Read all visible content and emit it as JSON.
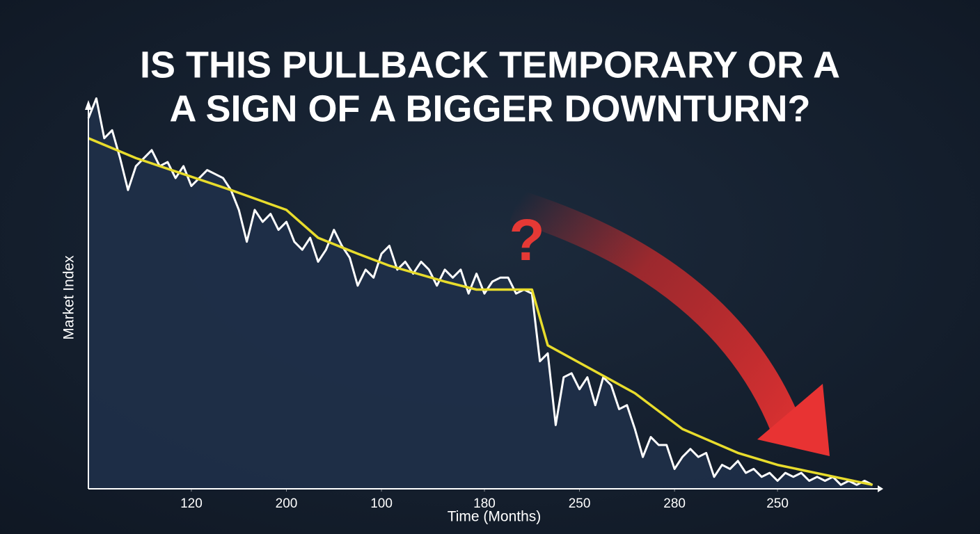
{
  "chart_data": {
    "type": "line",
    "title": [
      "IS THIS PULLBACK TEMPORARY OR A",
      "A SIGN OF A BIGGER DOWNTURN?"
    ],
    "x_label": "Time (Months)",
    "y_label": "Market Index",
    "annotation": "?",
    "xlim": [
      0,
      100
    ],
    "ylim": [
      0,
      100
    ],
    "xticks": [
      {
        "value": 13,
        "label": "120"
      },
      {
        "value": 25,
        "label": "200"
      },
      {
        "value": 37,
        "label": "100"
      },
      {
        "value": 50,
        "label": "180"
      },
      {
        "value": 62,
        "label": "250"
      },
      {
        "value": 74,
        "label": "280"
      },
      {
        "value": 87,
        "label": "250"
      }
    ],
    "fill_area": true,
    "series": [
      {
        "color": "#ffffff",
        "x": [
          0,
          1,
          2,
          3,
          4,
          5,
          6,
          7,
          8,
          9,
          10,
          11,
          12,
          13,
          14,
          15,
          16,
          17,
          18,
          19,
          20,
          21,
          22,
          23,
          24,
          25,
          26,
          27,
          28,
          29,
          30,
          31,
          32,
          33,
          34,
          35,
          36,
          37,
          38,
          39,
          40,
          41,
          42,
          43,
          44,
          45,
          46,
          47,
          48,
          49,
          50,
          51,
          52,
          53,
          54,
          55,
          56,
          57,
          58,
          59,
          60,
          61,
          62,
          63,
          64,
          65,
          66,
          67,
          68,
          69,
          70,
          71,
          72,
          73,
          74,
          75,
          76,
          77,
          78,
          79,
          80,
          81,
          82,
          83,
          84,
          85,
          86,
          87,
          88,
          89,
          90,
          91,
          92,
          93,
          94,
          95,
          96,
          97,
          98,
          99
        ],
        "values": [
          93,
          98,
          88,
          90,
          83,
          75,
          81,
          83,
          85,
          81,
          82,
          78,
          81,
          76,
          78,
          80,
          79,
          78,
          75,
          70,
          62,
          70,
          67,
          69,
          65,
          67,
          62,
          60,
          63,
          57,
          60,
          65,
          61,
          58,
          51,
          55,
          53,
          59,
          61,
          55,
          57,
          54,
          57,
          55,
          51,
          55,
          53,
          55,
          49,
          54,
          49,
          52,
          53,
          53,
          49,
          50,
          49,
          32,
          34,
          16,
          28,
          29,
          25,
          28,
          21,
          28,
          26,
          20,
          21,
          15,
          8,
          13,
          11,
          11,
          5,
          8,
          10,
          8,
          9,
          3,
          6,
          5,
          7,
          4,
          5,
          3,
          4,
          2,
          4,
          3,
          4,
          2,
          3,
          2,
          3,
          1,
          2,
          1,
          2,
          1
        ]
      },
      {
        "color": "#e8dc2c",
        "x": [
          0,
          6,
          18,
          25,
          29,
          34,
          38,
          45,
          49,
          56,
          58,
          69,
          75,
          82,
          87,
          99
        ],
        "values": [
          88,
          83,
          75,
          70,
          63,
          59,
          56,
          52,
          50,
          50,
          36,
          24,
          15,
          9,
          6,
          1
        ]
      }
    ]
  }
}
